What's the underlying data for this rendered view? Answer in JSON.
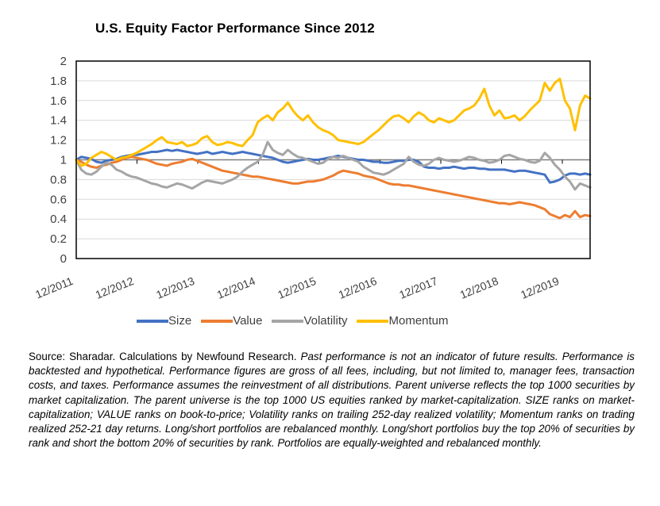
{
  "chart_data": {
    "type": "line",
    "title": "U.S. Equity Factor Performance Since 2012",
    "xlabel": "",
    "ylabel": "",
    "ylim": [
      0,
      2
    ],
    "yticks": [
      "0",
      "0.2",
      "0.4",
      "0.6",
      "0.8",
      "1",
      "1.2",
      "1.4",
      "1.6",
      "1.8",
      "2"
    ],
    "ytick_values": [
      0,
      0.2,
      0.4,
      0.6,
      0.8,
      1,
      1.2,
      1.4,
      1.6,
      1.8,
      2
    ],
    "xticks": [
      "12/2011",
      "12/2012",
      "12/2013",
      "12/2014",
      "12/2015",
      "12/2016",
      "12/2017",
      "12/2018",
      "12/2019"
    ],
    "x_start": "12/2011",
    "x_end": "6/2020",
    "x_frequency": "monthly",
    "reference_line": 1,
    "grid": true,
    "legend_position": "bottom",
    "series": [
      {
        "name": "Size",
        "color": "#4472C4",
        "values": [
          1.0,
          1.03,
          1.02,
          1.01,
          0.98,
          0.97,
          0.99,
          1.0,
          1.01,
          1.03,
          1.04,
          1.05,
          1.05,
          1.06,
          1.07,
          1.08,
          1.08,
          1.09,
          1.1,
          1.09,
          1.1,
          1.09,
          1.08,
          1.07,
          1.06,
          1.07,
          1.08,
          1.06,
          1.07,
          1.08,
          1.07,
          1.06,
          1.07,
          1.08,
          1.07,
          1.06,
          1.05,
          1.04,
          1.03,
          1.02,
          1.0,
          0.98,
          0.97,
          0.98,
          0.99,
          1.0,
          1.01,
          1.0,
          1.0,
          1.01,
          1.02,
          1.03,
          1.04,
          1.03,
          1.02,
          1.01,
          1.0,
          1.0,
          0.99,
          0.98,
          0.98,
          0.97,
          0.97,
          0.98,
          0.99,
          0.99,
          1.0,
          1.0,
          0.98,
          0.93,
          0.92,
          0.92,
          0.91,
          0.92,
          0.92,
          0.93,
          0.92,
          0.91,
          0.92,
          0.92,
          0.91,
          0.91,
          0.9,
          0.9,
          0.9,
          0.9,
          0.89,
          0.88,
          0.89,
          0.89,
          0.88,
          0.87,
          0.86,
          0.85,
          0.77,
          0.78,
          0.8,
          0.84,
          0.86,
          0.86,
          0.85,
          0.86,
          0.85
        ]
      },
      {
        "name": "Value",
        "color": "#ED7D31",
        "values": [
          1.0,
          0.98,
          0.95,
          0.93,
          0.92,
          0.94,
          0.95,
          0.97,
          0.98,
          1.0,
          1.02,
          1.03,
          1.02,
          1.01,
          1.0,
          0.98,
          0.96,
          0.95,
          0.94,
          0.96,
          0.97,
          0.98,
          1.0,
          1.01,
          0.99,
          0.97,
          0.95,
          0.93,
          0.91,
          0.89,
          0.88,
          0.87,
          0.86,
          0.85,
          0.84,
          0.83,
          0.83,
          0.82,
          0.81,
          0.8,
          0.79,
          0.78,
          0.77,
          0.76,
          0.76,
          0.77,
          0.78,
          0.78,
          0.79,
          0.8,
          0.82,
          0.84,
          0.87,
          0.89,
          0.88,
          0.87,
          0.86,
          0.84,
          0.83,
          0.82,
          0.8,
          0.78,
          0.76,
          0.75,
          0.75,
          0.74,
          0.74,
          0.73,
          0.72,
          0.71,
          0.7,
          0.69,
          0.68,
          0.67,
          0.66,
          0.65,
          0.64,
          0.63,
          0.62,
          0.61,
          0.6,
          0.59,
          0.58,
          0.57,
          0.56,
          0.56,
          0.55,
          0.56,
          0.57,
          0.56,
          0.55,
          0.54,
          0.52,
          0.5,
          0.45,
          0.43,
          0.41,
          0.44,
          0.42,
          0.48,
          0.42,
          0.44,
          0.43
        ]
      },
      {
        "name": "Volatility",
        "color": "#A5A5A5",
        "values": [
          1.0,
          0.9,
          0.86,
          0.85,
          0.88,
          0.93,
          0.97,
          0.95,
          0.9,
          0.88,
          0.85,
          0.83,
          0.82,
          0.8,
          0.78,
          0.76,
          0.75,
          0.73,
          0.72,
          0.74,
          0.76,
          0.75,
          0.73,
          0.71,
          0.74,
          0.77,
          0.79,
          0.78,
          0.77,
          0.76,
          0.78,
          0.8,
          0.83,
          0.88,
          0.92,
          0.95,
          0.98,
          1.05,
          1.18,
          1.1,
          1.07,
          1.05,
          1.1,
          1.06,
          1.03,
          1.02,
          1.0,
          0.98,
          0.96,
          0.97,
          1.01,
          1.03,
          1.02,
          1.04,
          1.02,
          1.0,
          0.98,
          0.93,
          0.9,
          0.87,
          0.86,
          0.85,
          0.87,
          0.9,
          0.93,
          0.96,
          1.03,
          0.98,
          0.95,
          0.94,
          0.96,
          1.0,
          1.02,
          1.0,
          0.99,
          0.98,
          0.99,
          1.01,
          1.03,
          1.02,
          1.0,
          0.99,
          0.97,
          0.98,
          1.0,
          1.04,
          1.05,
          1.03,
          1.01,
          1.0,
          0.98,
          0.97,
          0.99,
          1.07,
          1.02,
          0.95,
          0.9,
          0.83,
          0.78,
          0.7,
          0.76,
          0.74,
          0.72
        ]
      },
      {
        "name": "Momentum",
        "color": "#FFC000",
        "values": [
          1.0,
          0.94,
          0.96,
          1.02,
          1.05,
          1.08,
          1.06,
          1.03,
          1.0,
          1.02,
          1.03,
          1.05,
          1.07,
          1.1,
          1.13,
          1.16,
          1.2,
          1.23,
          1.18,
          1.17,
          1.16,
          1.18,
          1.14,
          1.15,
          1.17,
          1.22,
          1.24,
          1.18,
          1.15,
          1.16,
          1.18,
          1.17,
          1.15,
          1.14,
          1.2,
          1.25,
          1.38,
          1.42,
          1.45,
          1.4,
          1.48,
          1.52,
          1.58,
          1.5,
          1.44,
          1.4,
          1.45,
          1.38,
          1.33,
          1.3,
          1.28,
          1.25,
          1.2,
          1.19,
          1.18,
          1.17,
          1.16,
          1.18,
          1.22,
          1.26,
          1.3,
          1.35,
          1.4,
          1.44,
          1.45,
          1.42,
          1.38,
          1.44,
          1.48,
          1.45,
          1.4,
          1.38,
          1.42,
          1.4,
          1.38,
          1.4,
          1.45,
          1.5,
          1.52,
          1.55,
          1.62,
          1.72,
          1.55,
          1.45,
          1.5,
          1.42,
          1.43,
          1.45,
          1.4,
          1.44,
          1.5,
          1.55,
          1.6,
          1.78,
          1.7,
          1.78,
          1.82,
          1.6,
          1.52,
          1.3,
          1.55,
          1.65,
          1.62
        ]
      }
    ]
  },
  "footnote": {
    "source": "Source: Sharadar.  Calculations by Newfound Research.",
    "disclaimer": "Past performance is not an indicator of future results.  Performance is backtested and hypothetical.  Performance figures are gross of all fees, including, but not limited to, manager fees, transaction costs, and taxes.  Performance assumes the reinvestment of all distributions.  Parent universe reflects the top 1000 securities by market capitalization.  The parent universe is the top 1000 US equities ranked by market-capitalization.  SIZE ranks on market-capitalization; VALUE ranks on book-to-price; Volatility ranks on trailing 252-day realized volatility; Momentum ranks on trading realized 252-21 day returns.  Long/short portfolios are rebalanced monthly.  Long/short portfolios buy the top 20% of securities by rank and short the bottom 20% of securities by rank.  Portfolios are equally-weighted and rebalanced monthly."
  }
}
